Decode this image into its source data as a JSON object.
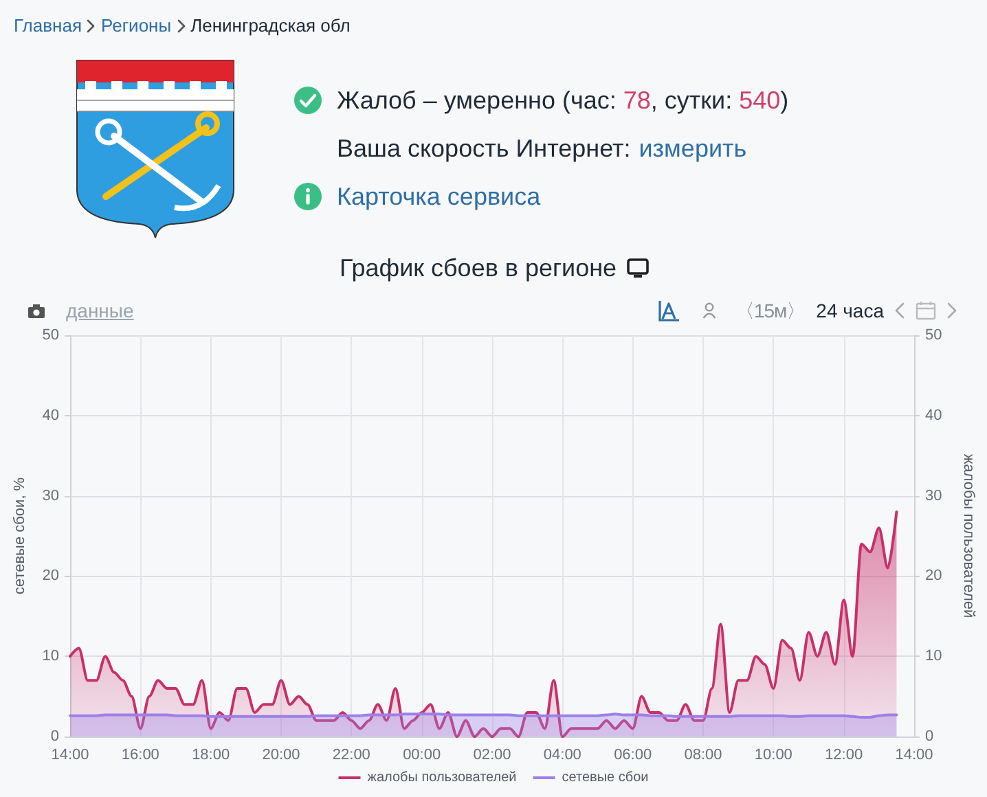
{
  "chart_data": {
    "type": "area",
    "title": "График сбоев в регионе",
    "ylabel": "сетевые сбои, %",
    "y2label": "жалобы пользователей",
    "annotations": [
      "Главная",
      "Регионы",
      "Ленинградская обл",
      "Жалоб – умеренно (час: 78, сутки: 540)",
      "Ваша скорость Интернет:",
      "измерить",
      "Карточка сервиса",
      "данные",
      "〈15м〉",
      "24 часа"
    ],
    "categories": [
      "14:00",
      null,
      null,
      null,
      null,
      null,
      null,
      null,
      "16:00",
      null,
      null,
      null,
      null,
      null,
      null,
      null,
      "18:00",
      null,
      null,
      null,
      null,
      null,
      null,
      null,
      "20:00",
      null,
      null,
      null,
      null,
      null,
      null,
      null,
      "22:00",
      null,
      null,
      null,
      null,
      null,
      null,
      null,
      "00:00",
      null,
      null,
      null,
      null,
      null,
      null,
      null,
      "02:00",
      null,
      null,
      null,
      null,
      null,
      null,
      null,
      "04:00",
      null,
      null,
      null,
      null,
      null,
      null,
      null,
      "06:00",
      null,
      null,
      null,
      null,
      null,
      null,
      null,
      "08:00",
      null,
      null,
      null,
      null,
      null,
      null,
      null,
      "10:00",
      null,
      null,
      null,
      null,
      null,
      null,
      null,
      "12:00",
      null,
      null,
      null,
      null,
      null,
      null,
      null,
      "14:00"
    ],
    "series": [
      {
        "name": "жалобы пользователей",
        "color": "#c8306a",
        "axis": "y2",
        "values": [
          10,
          11,
          7,
          7,
          10,
          8,
          7,
          5,
          1,
          5,
          7,
          6,
          6,
          4,
          4,
          7,
          1,
          3,
          2,
          6,
          6,
          3,
          4,
          4,
          7,
          4,
          5,
          4,
          2,
          2,
          2,
          3,
          2,
          1,
          2,
          4,
          2,
          6,
          1,
          2,
          3,
          4,
          1,
          3,
          0,
          2,
          0,
          1,
          0,
          1,
          1,
          0,
          3,
          3,
          1,
          7,
          0,
          1,
          1,
          1,
          1,
          2,
          1,
          2,
          1,
          5,
          3,
          3,
          2,
          2,
          4,
          2,
          2,
          6,
          14,
          3,
          7,
          7,
          10,
          9,
          6,
          12,
          11,
          7,
          13,
          10,
          13,
          9,
          17,
          10,
          24,
          23,
          26,
          21,
          28,
          null,
          null
        ]
      },
      {
        "name": "сетевые сбои",
        "color": "#9c80e8",
        "axis": "y",
        "values": [
          2.6,
          2.6,
          2.6,
          2.6,
          2.7,
          2.7,
          2.7,
          2.7,
          2.7,
          2.7,
          2.7,
          2.7,
          2.6,
          2.6,
          2.6,
          2.6,
          2.5,
          2.5,
          2.5,
          2.5,
          2.5,
          2.5,
          2.5,
          2.5,
          2.5,
          2.5,
          2.5,
          2.5,
          2.6,
          2.6,
          2.6,
          2.6,
          2.6,
          2.6,
          2.7,
          2.7,
          2.7,
          2.7,
          2.8,
          2.8,
          2.8,
          2.8,
          2.8,
          2.7,
          2.7,
          2.7,
          2.7,
          2.7,
          2.7,
          2.7,
          2.7,
          2.6,
          2.6,
          2.6,
          2.6,
          2.6,
          2.6,
          2.6,
          2.6,
          2.6,
          2.6,
          2.7,
          2.8,
          2.7,
          2.7,
          2.7,
          2.6,
          2.6,
          2.6,
          2.5,
          2.5,
          2.5,
          2.5,
          2.5,
          2.5,
          2.5,
          2.6,
          2.6,
          2.6,
          2.6,
          2.6,
          2.6,
          2.5,
          2.5,
          2.6,
          2.6,
          2.6,
          2.6,
          2.6,
          2.5,
          2.4,
          2.4,
          2.6,
          2.7,
          2.7,
          null,
          null
        ]
      }
    ],
    "ylim": [
      0,
      50
    ],
    "yticks": [
      0,
      10,
      20,
      30,
      40,
      50
    ],
    "y2lim": [
      0,
      50
    ],
    "y2ticks": [
      0,
      10,
      20,
      30,
      40,
      50
    ],
    "grid": true,
    "legend": "bottom",
    "marker": "none"
  }
}
